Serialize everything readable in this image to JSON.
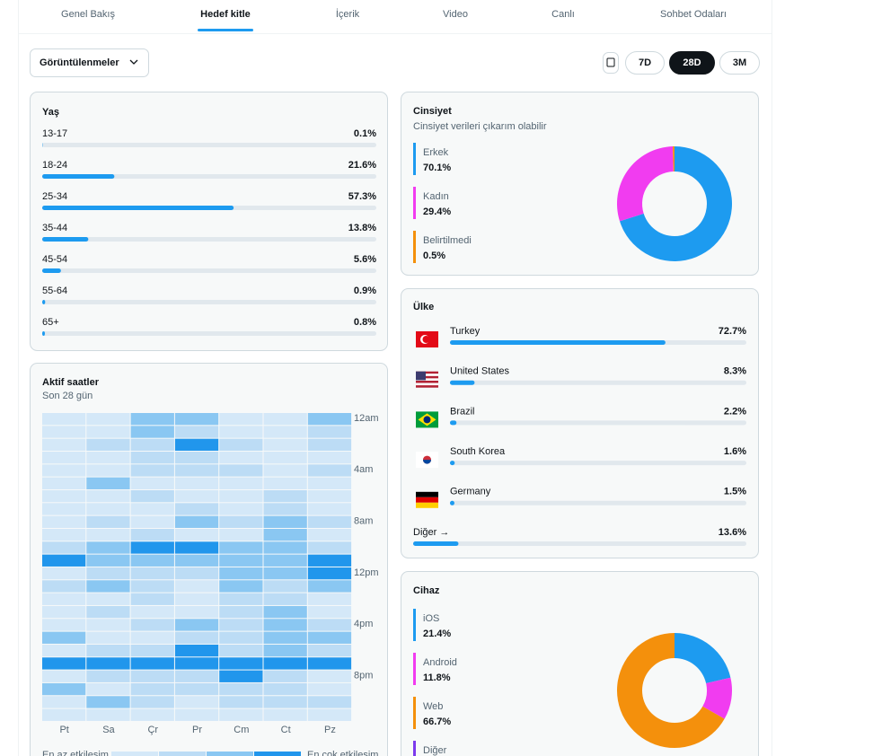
{
  "tabs": {
    "items": [
      "Genel Bakış",
      "Hedef kitle",
      "İçerik",
      "Video",
      "Canlı",
      "Sohbet Odaları"
    ],
    "active": 1
  },
  "filter": "Görüntülenmeler",
  "periods": {
    "items": [
      "7D",
      "28D",
      "3M"
    ],
    "active": 1
  },
  "age": {
    "title": "Yaş",
    "categories": [
      "13-17",
      "18-24",
      "25-34",
      "35-44",
      "45-54",
      "55-64",
      "65+"
    ],
    "values": [
      0.1,
      21.6,
      57.3,
      13.8,
      5.6,
      0.9,
      0.8
    ],
    "value_labels": [
      "0.1%",
      "21.6%",
      "57.3%",
      "13.8%",
      "5.6%",
      "0.9%",
      "0.8%"
    ],
    "xlim": [
      0,
      100
    ],
    "color": "#1d9bf0"
  },
  "gender": {
    "type": "pie",
    "title": "Cinsiyet",
    "subtitle": "Cinsiyet verileri çıkarım olabilir",
    "categories": [
      "Erkek",
      "Kadın",
      "Belirtilmedi"
    ],
    "values": [
      70.1,
      29.4,
      0.5
    ],
    "value_labels": [
      "70.1%",
      "29.4%",
      "0.5%"
    ],
    "colors": [
      "#1d9bf0",
      "#f13cf0",
      "#f4900c"
    ]
  },
  "country": {
    "title": "Ülke",
    "categories": [
      "Turkey",
      "United States",
      "Brazil",
      "South Korea",
      "Germany"
    ],
    "values": [
      72.7,
      8.3,
      2.2,
      1.6,
      1.5
    ],
    "value_labels": [
      "72.7%",
      "8.3%",
      "2.2%",
      "1.6%",
      "1.5%"
    ],
    "other": {
      "label": "Diğer →",
      "value": 13.6,
      "value_label": "13.6%"
    },
    "xlim": [
      0,
      100
    ],
    "color": "#1d9bf0"
  },
  "heatmap": {
    "title": "Aktif saatler",
    "subtitle": "Son 28 gün",
    "days": [
      "Pt",
      "Sa",
      "Çr",
      "Pr",
      "Cm",
      "Ct",
      "Pz"
    ],
    "hours": [
      "12am",
      null,
      null,
      null,
      "4am",
      null,
      null,
      null,
      "8am",
      null,
      null,
      null,
      "12pm",
      null,
      null,
      null,
      "4pm",
      null,
      null,
      null,
      "8pm",
      null,
      null,
      null
    ],
    "values": [
      [
        1,
        1,
        3,
        3,
        1,
        1,
        3
      ],
      [
        1,
        1,
        3,
        2,
        1,
        1,
        2
      ],
      [
        1,
        2,
        2,
        4,
        2,
        1,
        2
      ],
      [
        1,
        1,
        2,
        2,
        1,
        1,
        1
      ],
      [
        1,
        1,
        2,
        2,
        2,
        1,
        2
      ],
      [
        1,
        3,
        1,
        1,
        1,
        1,
        1
      ],
      [
        1,
        1,
        2,
        1,
        1,
        2,
        1
      ],
      [
        1,
        1,
        1,
        2,
        1,
        2,
        1
      ],
      [
        1,
        2,
        1,
        3,
        2,
        3,
        2
      ],
      [
        1,
        1,
        2,
        1,
        1,
        3,
        1
      ],
      [
        2,
        3,
        4,
        4,
        3,
        3,
        2
      ],
      [
        4,
        3,
        3,
        3,
        3,
        3,
        4
      ],
      [
        1,
        2,
        2,
        2,
        3,
        3,
        4
      ],
      [
        2,
        3,
        2,
        1,
        3,
        2,
        3
      ],
      [
        1,
        1,
        2,
        1,
        2,
        2,
        1
      ],
      [
        1,
        2,
        1,
        1,
        2,
        3,
        1
      ],
      [
        1,
        1,
        2,
        3,
        2,
        3,
        2
      ],
      [
        3,
        1,
        1,
        2,
        2,
        3,
        3
      ],
      [
        1,
        2,
        2,
        4,
        2,
        3,
        2
      ],
      [
        4,
        4,
        4,
        4,
        4,
        4,
        4
      ],
      [
        1,
        2,
        2,
        2,
        4,
        2,
        1
      ],
      [
        3,
        1,
        2,
        2,
        2,
        2,
        1
      ],
      [
        1,
        3,
        2,
        1,
        2,
        2,
        2
      ],
      [
        1,
        1,
        1,
        1,
        1,
        1,
        1
      ]
    ],
    "level_colors": [
      "#d4e8f8",
      "#bcdcf5",
      "#8ac7f2",
      "#2196ec"
    ],
    "legend_low": "En az etkileşim",
    "legend_high": "En çok etkileşim"
  },
  "device": {
    "type": "pie",
    "title": "Cihaz",
    "categories": [
      "iOS",
      "Android",
      "Web",
      "Diğer"
    ],
    "values": [
      21.4,
      11.8,
      66.7,
      null
    ],
    "value_labels": [
      "21.4%",
      "11.8%",
      "66.7%",
      null
    ],
    "colors": [
      "#1d9bf0",
      "#f13cf0",
      "#f4900c",
      "#7c3aed"
    ]
  }
}
